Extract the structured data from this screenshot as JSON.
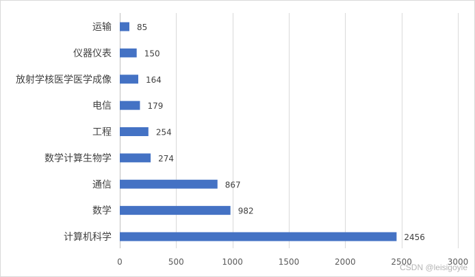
{
  "chart_data": {
    "type": "bar",
    "orientation": "horizontal",
    "title": "",
    "xlabel": "",
    "ylabel": "",
    "categories": [
      "运输",
      "仪器仪表",
      "放射学核医学医学成像",
      "电信",
      "工程",
      "数学计算生物学",
      "通信",
      "数学",
      "计算机科学"
    ],
    "values": [
      85,
      150,
      164,
      179,
      254,
      274,
      867,
      982,
      2456
    ],
    "xlim": [
      0,
      3000
    ],
    "x_ticks": [
      0,
      500,
      1000,
      1500,
      2000,
      2500,
      3000
    ],
    "grid": "vertical",
    "legend": "none",
    "data_labels": true,
    "bar_color": "#4472C4"
  },
  "watermark": "CSDN @leisigoyle"
}
